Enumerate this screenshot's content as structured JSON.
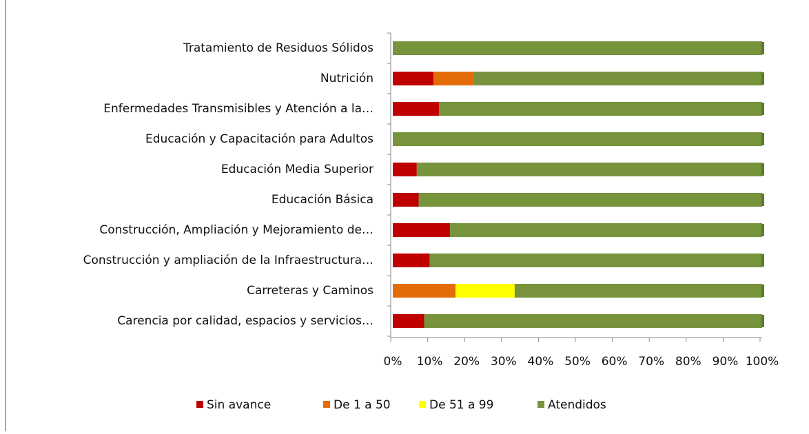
{
  "chart_data": {
    "type": "bar",
    "orientation": "horizontal",
    "stacked": true,
    "categories": [
      "Tratamiento de Residuos Sólidos",
      "Nutrición",
      "Enfermedades Transmisibles y Atención a la…",
      "Educación y Capacitación para Adultos",
      "Educación Media Superior",
      "Educación Básica",
      "Construcción, Ampliación y Mejoramiento de…",
      "Construcción y ampliación de la Infraestructura…",
      "Carreteras y Caminos",
      "Carencia por calidad, espacios y servicios…"
    ],
    "series": [
      {
        "name": "Sin avance",
        "color": "#c00000",
        "values": [
          0,
          11,
          12.5,
          0,
          6.5,
          7,
          15.5,
          10,
          0,
          8.5
        ]
      },
      {
        "name": "De 1 a 50",
        "color": "#e36c09",
        "values": [
          0,
          11,
          0,
          0,
          0,
          0,
          0,
          0,
          17,
          0
        ]
      },
      {
        "name": "De 51 a 99",
        "color": "#ffff00",
        "values": [
          0,
          0,
          0,
          0,
          0,
          0,
          0,
          0,
          16,
          0
        ]
      },
      {
        "name": "Atendidos",
        "color": "#77933c",
        "values": [
          100,
          78,
          87.5,
          100,
          93.5,
          93,
          84.5,
          90,
          67,
          91.5
        ]
      }
    ],
    "xlim": [
      0,
      100
    ],
    "xticks": [
      {
        "value": 0,
        "label": "0%"
      },
      {
        "value": 10,
        "label": "10%"
      },
      {
        "value": 20,
        "label": "20%"
      },
      {
        "value": 30,
        "label": "30%"
      },
      {
        "value": 40,
        "label": "40%"
      },
      {
        "value": 50,
        "label": "50%"
      },
      {
        "value": 60,
        "label": "60%"
      },
      {
        "value": 70,
        "label": "70%"
      },
      {
        "value": 80,
        "label": "80%"
      },
      {
        "value": 90,
        "label": "90%"
      },
      {
        "value": 100,
        "label": "100%"
      }
    ],
    "legend": "bottom"
  }
}
